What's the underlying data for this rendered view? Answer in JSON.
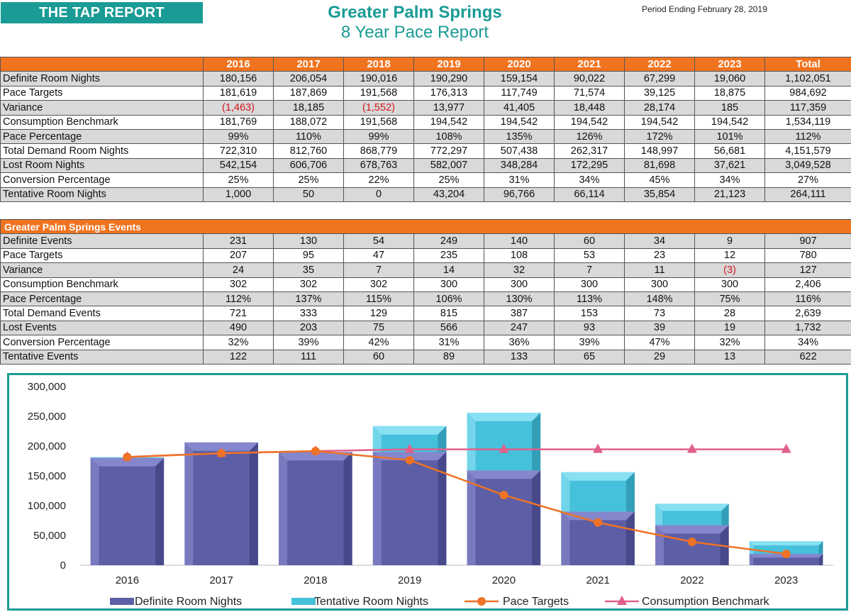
{
  "header": {
    "badge": "THE TAP REPORT",
    "title": "Greater Palm Springs",
    "subtitle": "8 Year Pace Report",
    "period": "Period Ending February 28, 2019"
  },
  "columns": [
    "2016",
    "2017",
    "2018",
    "2019",
    "2020",
    "2021",
    "2022",
    "2023",
    "Total"
  ],
  "rooms_table": {
    "rows": [
      {
        "label": "Definite Room Nights",
        "values": [
          "180,156",
          "206,054",
          "190,016",
          "190,290",
          "159,154",
          "90,022",
          "67,299",
          "19,060",
          "1,102,051"
        ]
      },
      {
        "label": "Pace Targets",
        "values": [
          "181,619",
          "187,869",
          "191,568",
          "176,313",
          "117,749",
          "71,574",
          "39,125",
          "18,875",
          "984,692"
        ]
      },
      {
        "label": "Variance",
        "values": [
          "(1,463)",
          "18,185",
          "(1,552)",
          "13,977",
          "41,405",
          "18,448",
          "28,174",
          "185",
          "117,359"
        ]
      },
      {
        "label": "Consumption Benchmark",
        "values": [
          "181,769",
          "188,072",
          "191,568",
          "194,542",
          "194,542",
          "194,542",
          "194,542",
          "194,542",
          "1,534,119"
        ]
      },
      {
        "label": "Pace Percentage",
        "values": [
          "99%",
          "110%",
          "99%",
          "108%",
          "135%",
          "126%",
          "172%",
          "101%",
          "112%"
        ]
      },
      {
        "label": "Total Demand Room Nights",
        "values": [
          "722,310",
          "812,760",
          "868,779",
          "772,297",
          "507,438",
          "262,317",
          "148,997",
          "56,681",
          "4,151,579"
        ]
      },
      {
        "label": "Lost Room Nights",
        "values": [
          "542,154",
          "606,706",
          "678,763",
          "582,007",
          "348,284",
          "172,295",
          "81,698",
          "37,621",
          "3,049,528"
        ]
      },
      {
        "label": "Conversion Percentage",
        "values": [
          "25%",
          "25%",
          "22%",
          "25%",
          "31%",
          "34%",
          "45%",
          "34%",
          "27%"
        ]
      },
      {
        "label": "Tentative Room Nights",
        "values": [
          "1,000",
          "50",
          "0",
          "43,204",
          "96,766",
          "66,114",
          "35,854",
          "21,123",
          "264,111"
        ]
      }
    ]
  },
  "events_table": {
    "title": "Greater Palm Springs Events",
    "rows": [
      {
        "label": "Definite Events",
        "values": [
          "231",
          "130",
          "54",
          "249",
          "140",
          "60",
          "34",
          "9",
          "907"
        ]
      },
      {
        "label": "Pace Targets",
        "values": [
          "207",
          "95",
          "47",
          "235",
          "108",
          "53",
          "23",
          "12",
          "780"
        ]
      },
      {
        "label": "Variance",
        "values": [
          "24",
          "35",
          "7",
          "14",
          "32",
          "7",
          "11",
          "(3)",
          "127"
        ]
      },
      {
        "label": "Consumption Benchmark",
        "values": [
          "302",
          "302",
          "302",
          "300",
          "300",
          "300",
          "300",
          "300",
          "2,406"
        ]
      },
      {
        "label": "Pace Percentage",
        "values": [
          "112%",
          "137%",
          "115%",
          "106%",
          "130%",
          "113%",
          "148%",
          "75%",
          "116%"
        ]
      },
      {
        "label": "Total Demand Events",
        "values": [
          "721",
          "333",
          "129",
          "815",
          "387",
          "153",
          "73",
          "28",
          "2,639"
        ]
      },
      {
        "label": "Lost Events",
        "values": [
          "490",
          "203",
          "75",
          "566",
          "247",
          "93",
          "39",
          "19",
          "1,732"
        ]
      },
      {
        "label": "Conversion Percentage",
        "values": [
          "32%",
          "39%",
          "42%",
          "31%",
          "36%",
          "39%",
          "47%",
          "32%",
          "34%"
        ]
      },
      {
        "label": "Tentative Events",
        "values": [
          "122",
          "111",
          "60",
          "89",
          "133",
          "65",
          "29",
          "13",
          "622"
        ]
      }
    ]
  },
  "colors": {
    "teal": "#1a9b95",
    "orange": "#f0731f",
    "negative": "#d2161c",
    "definite": "#5c5ea6",
    "tentative": "#46c1dc",
    "pace": "#ee7326",
    "benchmark": "#e0608a"
  },
  "chart_data": {
    "type": "bar",
    "stacked": true,
    "categories": [
      "2016",
      "2017",
      "2018",
      "2019",
      "2020",
      "2021",
      "2022",
      "2023"
    ],
    "ylim": [
      0,
      300000
    ],
    "yticks": [
      0,
      50000,
      100000,
      150000,
      200000,
      250000,
      300000
    ],
    "ytick_labels": [
      "0",
      "50,000",
      "100,000",
      "150,000",
      "200,000",
      "250,000",
      "300,000"
    ],
    "series": [
      {
        "name": "Definite Room Nights",
        "kind": "bar",
        "values": [
          180156,
          206054,
          190016,
          190290,
          159154,
          90022,
          67299,
          19060
        ]
      },
      {
        "name": "Tentative Room Nights",
        "kind": "bar",
        "values": [
          1000,
          50,
          0,
          43204,
          96766,
          66114,
          35854,
          21123
        ]
      },
      {
        "name": "Pace Targets",
        "kind": "line",
        "values": [
          181619,
          187869,
          191568,
          176313,
          117749,
          71574,
          39125,
          18875
        ]
      },
      {
        "name": "Consumption Benchmark",
        "kind": "line",
        "values": [
          181769,
          188072,
          191568,
          194542,
          194542,
          194542,
          194542,
          194542
        ]
      }
    ],
    "legend": "bottom"
  }
}
